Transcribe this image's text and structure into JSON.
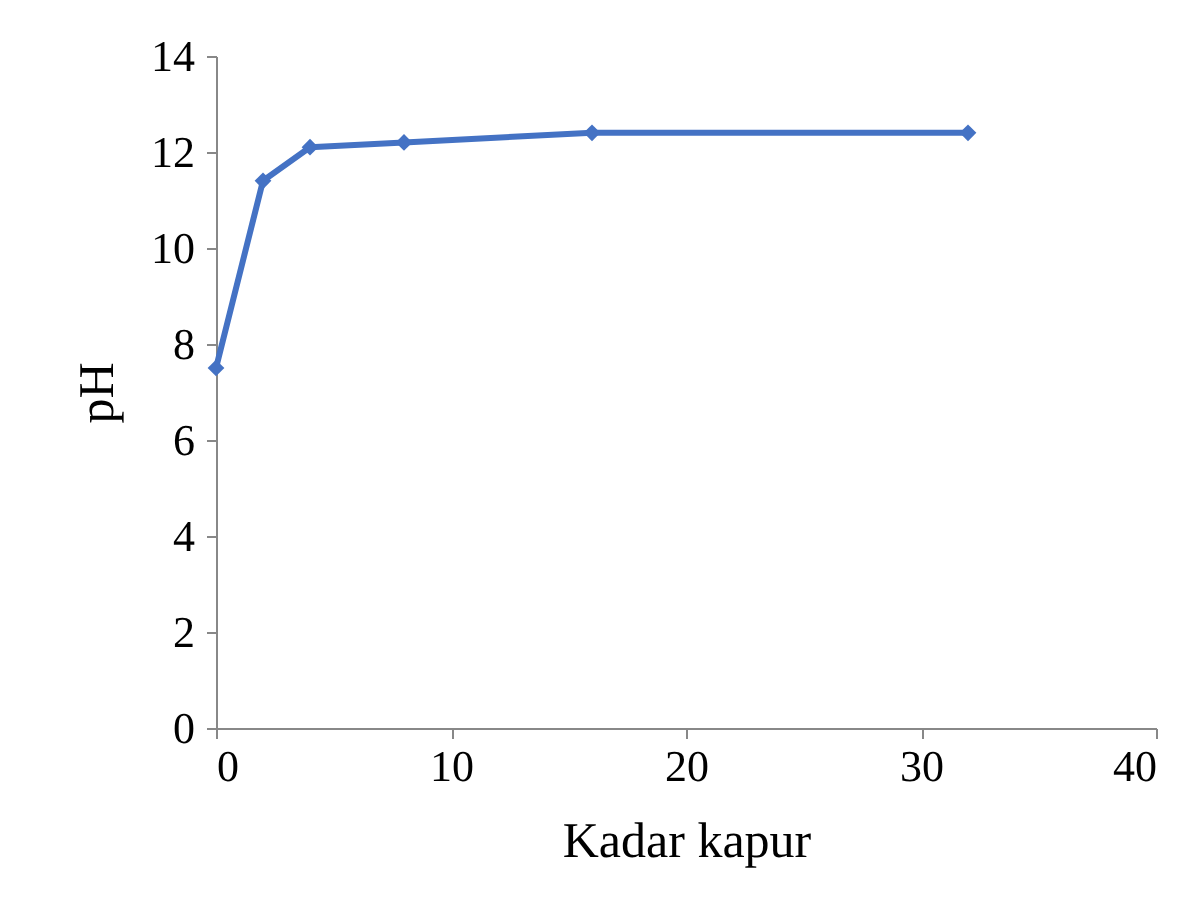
{
  "chart_data": {
    "type": "line",
    "xlabel": "Kadar kapur",
    "ylabel": "pH",
    "x": [
      0,
      2,
      4,
      8,
      16,
      32
    ],
    "series": [
      {
        "color": "#4472c4",
        "values": [
          7.5,
          11.4,
          12.1,
          12.2,
          12.4,
          12.4
        ]
      }
    ],
    "xlim": [
      0,
      40
    ],
    "xticks": [
      0,
      10,
      20,
      30,
      40
    ],
    "ylim": [
      0,
      14
    ],
    "yticks": [
      0,
      2,
      4,
      6,
      8,
      10,
      12,
      14
    ],
    "grid": false,
    "marker": "diamond",
    "line_style": "solid"
  }
}
